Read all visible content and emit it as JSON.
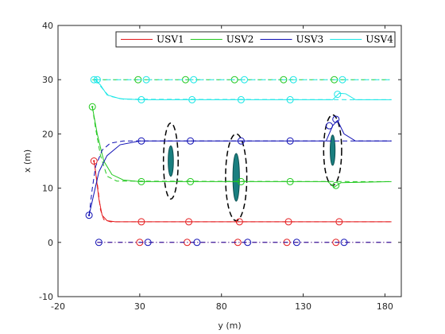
{
  "chart_data": {
    "type": "line",
    "xlabel": "y (m)",
    "ylabel": "x (m)",
    "xlim": [
      -20,
      190
    ],
    "ylim": [
      -10,
      40
    ],
    "xticks": [
      "-20",
      "30",
      "80",
      "130",
      "180"
    ],
    "xtick_values": [
      -20,
      30,
      80,
      130,
      180
    ],
    "yticks": [
      "-10",
      "0",
      "10",
      "20",
      "30",
      "40"
    ],
    "ytick_values": [
      -10,
      0,
      10,
      20,
      30,
      40
    ],
    "grid": false,
    "legend_placement": "top-right",
    "legend_orientation": "horizontal",
    "series": [
      {
        "name": "USV1",
        "color": "#e41a1c",
        "solid": [
          [
            2,
            15
          ],
          [
            3,
            13
          ],
          [
            5,
            8
          ],
          [
            7,
            5
          ],
          [
            10,
            4
          ],
          [
            15,
            3.8
          ],
          [
            184,
            3.8
          ]
        ],
        "dashed": [
          [
            2,
            15
          ],
          [
            4,
            11
          ],
          [
            6,
            6
          ],
          [
            8,
            4.2
          ],
          [
            12,
            3.8
          ],
          [
            184,
            3.8
          ]
        ],
        "lower_lane": [
          [
            4,
            0
          ],
          [
            184,
            0
          ]
        ],
        "markers": [
          [
            2,
            15
          ],
          [
            31,
            3.8
          ],
          [
            60,
            3.8
          ],
          [
            91,
            3.8
          ],
          [
            121,
            3.8
          ],
          [
            152,
            3.8
          ]
        ],
        "lower_markers": [
          [
            30,
            0
          ],
          [
            59,
            0
          ],
          [
            90,
            0
          ],
          [
            120,
            0
          ],
          [
            150,
            0
          ]
        ]
      },
      {
        "name": "USV2",
        "color": "#22c81f",
        "solid": [
          [
            1,
            25
          ],
          [
            4,
            20
          ],
          [
            8,
            15
          ],
          [
            13,
            12.5
          ],
          [
            20,
            11.5
          ],
          [
            30,
            11.2
          ],
          [
            145,
            11.2
          ],
          [
            149,
            10.2
          ],
          [
            153,
            11
          ],
          [
            184,
            11.2
          ]
        ],
        "dashed": [
          [
            1,
            25
          ],
          [
            3,
            21
          ],
          [
            6,
            16
          ],
          [
            10,
            12.2
          ],
          [
            16,
            11.3
          ],
          [
            184,
            11.2
          ]
        ],
        "upper_lane": [
          [
            1,
            30
          ],
          [
            184,
            30
          ]
        ],
        "markers": [
          [
            1,
            25
          ],
          [
            31,
            11.2
          ],
          [
            61,
            11.2
          ],
          [
            92,
            11.2
          ],
          [
            122,
            11.2
          ],
          [
            150,
            10.5
          ]
        ],
        "upper_markers": [
          [
            29,
            30
          ],
          [
            58,
            30
          ],
          [
            88,
            30
          ],
          [
            118,
            30
          ],
          [
            149,
            30
          ]
        ]
      },
      {
        "name": "USV3",
        "color": "#0f0fb4",
        "solid": [
          [
            -1,
            5
          ],
          [
            2,
            9
          ],
          [
            5,
            13
          ],
          [
            10,
            16
          ],
          [
            18,
            18
          ],
          [
            30,
            18.7
          ],
          [
            144,
            18.7
          ],
          [
            148,
            21.5
          ],
          [
            151,
            22.5
          ],
          [
            155,
            20
          ],
          [
            162,
            18.7
          ],
          [
            184,
            18.7
          ]
        ],
        "dashed": [
          [
            -1,
            5
          ],
          [
            1,
            10
          ],
          [
            3,
            14
          ],
          [
            7,
            17
          ],
          [
            12,
            18.3
          ],
          [
            20,
            18.7
          ],
          [
            184,
            18.7
          ]
        ],
        "lower_lane": [
          [
            4,
            0
          ],
          [
            184,
            0
          ]
        ],
        "markers": [
          [
            -1,
            5
          ],
          [
            31,
            18.7
          ],
          [
            61,
            18.7
          ],
          [
            92,
            18.7
          ],
          [
            122,
            18.7
          ],
          [
            146,
            21.5
          ],
          [
            150,
            22.7
          ]
        ],
        "lower_markers": [
          [
            5,
            0
          ],
          [
            35,
            0
          ],
          [
            65,
            0
          ],
          [
            96,
            0
          ],
          [
            126,
            0
          ],
          [
            155,
            0
          ]
        ]
      },
      {
        "name": "USV4",
        "color": "#19e6e6",
        "solid": [
          [
            3,
            30
          ],
          [
            6,
            29
          ],
          [
            10,
            27.2
          ],
          [
            18,
            26.5
          ],
          [
            30,
            26.3
          ],
          [
            148,
            26.3
          ],
          [
            152,
            27.5
          ],
          [
            156,
            27.4
          ],
          [
            162,
            26.3
          ],
          [
            184,
            26.3
          ]
        ],
        "dashed": [
          [
            3,
            30
          ],
          [
            6,
            28.8
          ],
          [
            11,
            27
          ],
          [
            20,
            26.4
          ],
          [
            184,
            26.3
          ]
        ],
        "upper_lane": [
          [
            3,
            30
          ],
          [
            184,
            30
          ]
        ],
        "markers": [
          [
            4,
            30
          ],
          [
            31,
            26.3
          ],
          [
            62,
            26.3
          ],
          [
            92,
            26.3
          ],
          [
            122,
            26.3
          ],
          [
            151,
            27.3
          ]
        ],
        "upper_markers": [
          [
            2,
            30
          ],
          [
            34,
            30
          ],
          [
            63,
            30
          ],
          [
            94,
            30
          ],
          [
            124,
            30
          ],
          [
            154,
            30
          ]
        ]
      }
    ],
    "obstacles": [
      {
        "center": [
          49,
          15
        ],
        "rx": 4.5,
        "ry": 7,
        "core_rx": 1.6,
        "core_ry": 2.8
      },
      {
        "center": [
          89,
          12
        ],
        "rx": 6.5,
        "ry": 8,
        "core_rx": 2.0,
        "core_ry": 4.4
      },
      {
        "center": [
          148,
          17
        ],
        "rx": 5.5,
        "ry": 6.5,
        "core_rx": 1.5,
        "core_ry": 2.8
      }
    ],
    "obstacle_color": "#1a7f80",
    "obstacle_dash_color": "#000000"
  }
}
